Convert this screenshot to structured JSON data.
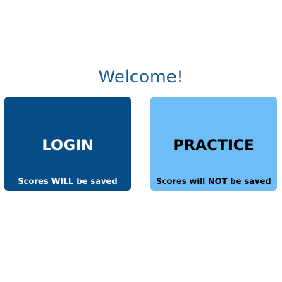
{
  "welcome": {
    "text": "Welcome!"
  },
  "cards": {
    "login": {
      "title": "LOGIN",
      "subtitle": "Scores WILL be saved"
    },
    "practice": {
      "title": "PRACTICE",
      "subtitle": "Scores will NOT be saved"
    }
  },
  "colors": {
    "welcome_text": "#1c5c96",
    "login_bg": "#064d88",
    "login_text": "#ffffff",
    "practice_bg": "#6fbdf6",
    "practice_text": "#000000"
  }
}
